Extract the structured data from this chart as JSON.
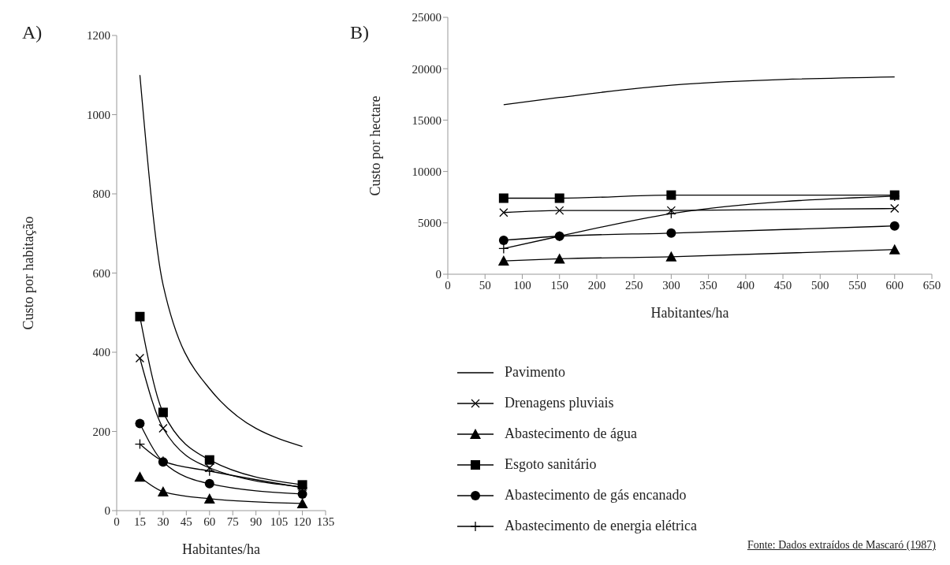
{
  "chart_data": [
    {
      "type": "line",
      "title": "A)",
      "xlabel": "Habitantes/ha",
      "ylabel": "Custo por habitação",
      "x": [
        15,
        30,
        60,
        120
      ],
      "xlim": [
        0,
        135
      ],
      "xticks": [
        0,
        15,
        30,
        45,
        60,
        75,
        90,
        105,
        120,
        135
      ],
      "ylim": [
        0,
        1200
      ],
      "yticks": [
        0,
        200,
        400,
        600,
        800,
        1000,
        1200
      ],
      "grid": false,
      "legend": false,
      "line_style": "solid",
      "series": [
        {
          "color": "#000000",
          "marker": "none",
          "values": [
            1100,
            570,
            308,
            162
          ]
        },
        {
          "color": "#000000",
          "marker": "cross",
          "values": [
            385,
            208,
            108,
            60
          ]
        },
        {
          "color": "#000000",
          "marker": "triangle",
          "values": [
            85,
            48,
            30,
            18
          ]
        },
        {
          "color": "#000000",
          "marker": "square",
          "values": [
            490,
            248,
            128,
            65
          ]
        },
        {
          "color": "#000000",
          "marker": "circle",
          "values": [
            220,
            123,
            68,
            42
          ]
        },
        {
          "color": "#000000",
          "marker": "plus",
          "values": [
            168,
            125,
            100,
            58
          ]
        }
      ]
    },
    {
      "type": "line",
      "title": "B)",
      "xlabel": "Habitantes/ha",
      "ylabel": "Custo por hectare",
      "x": [
        75,
        150,
        300,
        600
      ],
      "xlim": [
        0,
        650
      ],
      "xticks": [
        0,
        50,
        100,
        150,
        200,
        250,
        300,
        350,
        400,
        450,
        500,
        550,
        600,
        650
      ],
      "ylim": [
        0,
        25000
      ],
      "yticks": [
        0,
        5000,
        10000,
        15000,
        20000,
        25000
      ],
      "grid": false,
      "legend": "bottom",
      "line_style": "solid",
      "annotations": [
        "Fonte: Dados extraídos de Mascaró (1987)"
      ],
      "series": [
        {
          "name": "Pavimento",
          "color": "#000000",
          "marker": "none",
          "values": [
            16500,
            17200,
            18400,
            19200
          ]
        },
        {
          "name": "Drenagens pluviais",
          "color": "#000000",
          "marker": "cross",
          "values": [
            6000,
            6200,
            6200,
            6400
          ]
        },
        {
          "name": "Abastecimento de água",
          "color": "#000000",
          "marker": "triangle",
          "values": [
            1300,
            1500,
            1700,
            2400
          ]
        },
        {
          "name": "Esgoto sanitário",
          "color": "#000000",
          "marker": "square",
          "values": [
            7400,
            7400,
            7700,
            7700
          ]
        },
        {
          "name": "Abastecimento de gás encanado",
          "color": "#000000",
          "marker": "circle",
          "values": [
            3300,
            3700,
            4000,
            4700
          ]
        },
        {
          "name": "Abastecimento de energia elétrica",
          "color": "#000000",
          "marker": "plus",
          "values": [
            2500,
            3700,
            5900,
            7600
          ]
        }
      ]
    }
  ]
}
